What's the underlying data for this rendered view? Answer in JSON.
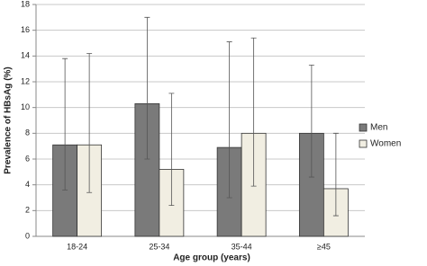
{
  "chart_data": {
    "type": "bar",
    "x_label": "Age group (years)",
    "y_label": "Prevalence of HBsAg (%)",
    "categories": [
      "18-24",
      "25-34",
      "35-44",
      "≥45"
    ],
    "series": [
      {
        "name": "Men",
        "color": "#7a7a7a",
        "values": [
          7.1,
          10.3,
          6.9,
          8.0
        ],
        "lower": [
          3.6,
          6.0,
          3.0,
          4.6
        ],
        "upper": [
          13.8,
          17.0,
          15.1,
          13.3
        ]
      },
      {
        "name": "Women",
        "color": "#f1eee2",
        "values": [
          7.1,
          5.2,
          8.0,
          3.7
        ],
        "lower": [
          3.4,
          2.4,
          3.9,
          1.6
        ],
        "upper": [
          14.2,
          11.1,
          15.4,
          8.0
        ]
      }
    ],
    "ylim": [
      0,
      18
    ],
    "yticks": [
      0,
      2,
      4,
      6,
      8,
      10,
      12,
      14,
      16,
      18
    ],
    "grid": true,
    "legend": "right"
  }
}
